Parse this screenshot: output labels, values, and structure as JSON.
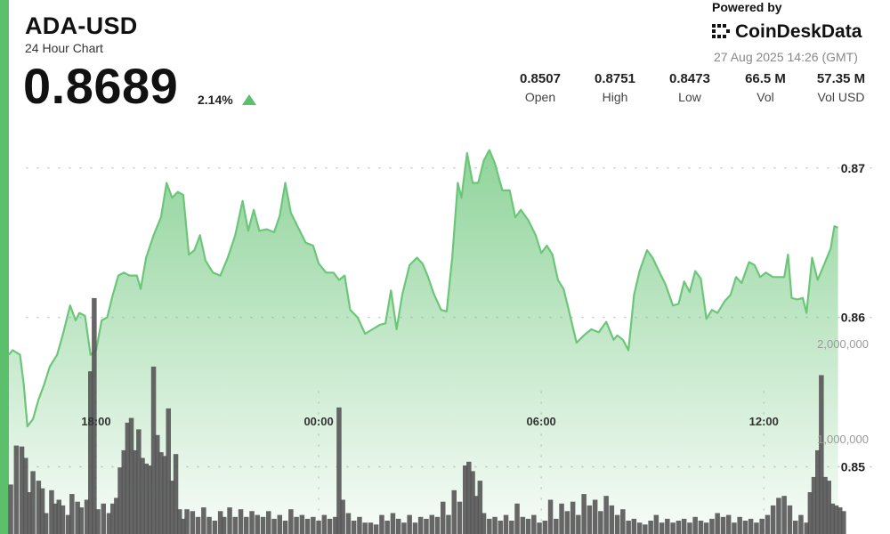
{
  "header": {
    "pair": "ADA-USD",
    "subtitle": "24 Hour Chart",
    "price": "0.8689",
    "change": "2.14%"
  },
  "branding": {
    "powered_by": "Powered by",
    "name": "CoinDeskData",
    "timestamp": "27 Aug 2025 14:26 (GMT)"
  },
  "stats": [
    {
      "value": "0.8507",
      "label": "Open"
    },
    {
      "value": "0.8751",
      "label": "High"
    },
    {
      "value": "0.8473",
      "label": "Low"
    },
    {
      "value": "66.5 M",
      "label": "Vol"
    },
    {
      "value": "57.35 M",
      "label": "Vol USD"
    }
  ],
  "colors": {
    "accent": "#5cbf6b",
    "line": "#6cc67a",
    "volume_bar": "#555555"
  },
  "chart_data": {
    "type": "line",
    "price_axis": {
      "ticks": [
        "0.87",
        "0.86",
        "0.85"
      ],
      "tick_values": [
        0.87,
        0.86,
        0.85
      ],
      "ylim": [
        0.8455,
        0.8735
      ],
      "grid": true
    },
    "volume_axis": {
      "ticks": [
        "2,000,000",
        "1,000,000"
      ],
      "tick_values": [
        2000000,
        1000000
      ],
      "ylim": [
        0,
        2900000
      ]
    },
    "time_axis": {
      "ticks": [
        "18:00",
        "00:00",
        "06:00",
        "12:00"
      ],
      "tick_hours": [
        18,
        24,
        30,
        36
      ],
      "range_hours": [
        15.65,
        39.4
      ]
    },
    "price_series": [
      [
        15.65,
        0.8575
      ],
      [
        15.75,
        0.8578
      ],
      [
        15.95,
        0.8575
      ],
      [
        16.05,
        0.8555
      ],
      [
        16.15,
        0.8527
      ],
      [
        16.3,
        0.8532
      ],
      [
        16.45,
        0.8545
      ],
      [
        16.6,
        0.8555
      ],
      [
        16.75,
        0.8567
      ],
      [
        16.95,
        0.8575
      ],
      [
        17.1,
        0.8588
      ],
      [
        17.3,
        0.8608
      ],
      [
        17.45,
        0.8598
      ],
      [
        17.55,
        0.8603
      ],
      [
        17.7,
        0.8601
      ],
      [
        17.85,
        0.8575
      ],
      [
        18.0,
        0.8578
      ],
      [
        18.15,
        0.8598
      ],
      [
        18.3,
        0.86
      ],
      [
        18.45,
        0.8615
      ],
      [
        18.6,
        0.8628
      ],
      [
        18.75,
        0.863
      ],
      [
        18.9,
        0.8628
      ],
      [
        19.1,
        0.8628
      ],
      [
        19.2,
        0.8619
      ],
      [
        19.35,
        0.864
      ],
      [
        19.55,
        0.8655
      ],
      [
        19.75,
        0.8667
      ],
      [
        19.9,
        0.869
      ],
      [
        20.05,
        0.868
      ],
      [
        20.2,
        0.8684
      ],
      [
        20.35,
        0.8682
      ],
      [
        20.5,
        0.8642
      ],
      [
        20.65,
        0.8645
      ],
      [
        20.8,
        0.8655
      ],
      [
        20.95,
        0.8638
      ],
      [
        21.15,
        0.863
      ],
      [
        21.35,
        0.8628
      ],
      [
        21.55,
        0.864
      ],
      [
        21.75,
        0.8655
      ],
      [
        21.95,
        0.8678
      ],
      [
        22.1,
        0.8658
      ],
      [
        22.25,
        0.8672
      ],
      [
        22.4,
        0.8658
      ],
      [
        22.6,
        0.8659
      ],
      [
        22.8,
        0.8657
      ],
      [
        22.95,
        0.8668
      ],
      [
        23.1,
        0.869
      ],
      [
        23.25,
        0.867
      ],
      [
        23.45,
        0.866
      ],
      [
        23.65,
        0.865
      ],
      [
        23.85,
        0.8648
      ],
      [
        24.0,
        0.8636
      ],
      [
        24.2,
        0.863
      ],
      [
        24.4,
        0.863
      ],
      [
        24.55,
        0.8625
      ],
      [
        24.7,
        0.8628
      ],
      [
        24.85,
        0.8605
      ],
      [
        25.05,
        0.86
      ],
      [
        25.25,
        0.8589
      ],
      [
        25.45,
        0.8592
      ],
      [
        25.65,
        0.8595
      ],
      [
        25.8,
        0.8596
      ],
      [
        25.95,
        0.8618
      ],
      [
        26.1,
        0.8592
      ],
      [
        26.25,
        0.8615
      ],
      [
        26.45,
        0.8635
      ],
      [
        26.65,
        0.864
      ],
      [
        26.8,
        0.8636
      ],
      [
        26.95,
        0.8627
      ],
      [
        27.1,
        0.8616
      ],
      [
        27.3,
        0.8605
      ],
      [
        27.45,
        0.8604
      ],
      [
        27.6,
        0.864
      ],
      [
        27.75,
        0.869
      ],
      [
        27.85,
        0.868
      ],
      [
        28.0,
        0.871
      ],
      [
        28.15,
        0.869
      ],
      [
        28.3,
        0.869
      ],
      [
        28.45,
        0.8705
      ],
      [
        28.6,
        0.8712
      ],
      [
        28.75,
        0.8703
      ],
      [
        28.95,
        0.8685
      ],
      [
        29.15,
        0.8685
      ],
      [
        29.3,
        0.8667
      ],
      [
        29.45,
        0.8672
      ],
      [
        29.65,
        0.8665
      ],
      [
        29.85,
        0.8655
      ],
      [
        30.0,
        0.8643
      ],
      [
        30.15,
        0.8648
      ],
      [
        30.3,
        0.8642
      ],
      [
        30.45,
        0.8625
      ],
      [
        30.6,
        0.8619
      ],
      [
        30.75,
        0.8604
      ],
      [
        30.95,
        0.8583
      ],
      [
        31.15,
        0.8588
      ],
      [
        31.35,
        0.8592
      ],
      [
        31.55,
        0.859
      ],
      [
        31.75,
        0.8597
      ],
      [
        31.95,
        0.8585
      ],
      [
        32.05,
        0.8588
      ],
      [
        32.2,
        0.8585
      ],
      [
        32.35,
        0.8578
      ],
      [
        32.5,
        0.8615
      ],
      [
        32.65,
        0.8631
      ],
      [
        32.85,
        0.8645
      ],
      [
        33.0,
        0.864
      ],
      [
        33.15,
        0.8632
      ],
      [
        33.35,
        0.8622
      ],
      [
        33.55,
        0.8608
      ],
      [
        33.7,
        0.8609
      ],
      [
        33.85,
        0.8624
      ],
      [
        34.0,
        0.8617
      ],
      [
        34.15,
        0.8631
      ],
      [
        34.3,
        0.8626
      ],
      [
        34.45,
        0.8599
      ],
      [
        34.6,
        0.8605
      ],
      [
        34.75,
        0.8603
      ],
      [
        34.95,
        0.8611
      ],
      [
        35.1,
        0.8615
      ],
      [
        35.25,
        0.8627
      ],
      [
        35.4,
        0.8623
      ],
      [
        35.6,
        0.8637
      ],
      [
        35.75,
        0.8635
      ],
      [
        35.9,
        0.8627
      ],
      [
        36.05,
        0.863
      ],
      [
        36.25,
        0.8627
      ],
      [
        36.4,
        0.8627
      ],
      [
        36.55,
        0.8627
      ],
      [
        36.65,
        0.8642
      ],
      [
        36.75,
        0.8613
      ],
      [
        36.9,
        0.8612
      ],
      [
        37.05,
        0.8613
      ],
      [
        37.15,
        0.8603
      ],
      [
        37.3,
        0.864
      ],
      [
        37.45,
        0.8625
      ],
      [
        37.65,
        0.8637
      ],
      [
        37.8,
        0.8646
      ],
      [
        37.9,
        0.8661
      ],
      [
        38.0,
        0.866
      ]
    ],
    "volume_series": [
      [
        15.7,
        520000
      ],
      [
        15.85,
        930000
      ],
      [
        16.0,
        920000
      ],
      [
        16.1,
        800000
      ],
      [
        16.2,
        440000
      ],
      [
        16.3,
        660000
      ],
      [
        16.45,
        560000
      ],
      [
        16.55,
        480000
      ],
      [
        16.65,
        220000
      ],
      [
        16.8,
        460000
      ],
      [
        16.9,
        320000
      ],
      [
        17.0,
        360000
      ],
      [
        17.1,
        300000
      ],
      [
        17.25,
        200000
      ],
      [
        17.35,
        420000
      ],
      [
        17.5,
        340000
      ],
      [
        17.6,
        280000
      ],
      [
        17.75,
        360000
      ],
      [
        17.85,
        1710000
      ],
      [
        17.95,
        2480000
      ],
      [
        18.05,
        260000
      ],
      [
        18.2,
        320000
      ],
      [
        18.35,
        220000
      ],
      [
        18.45,
        320000
      ],
      [
        18.55,
        380000
      ],
      [
        18.65,
        700000
      ],
      [
        18.75,
        880000
      ],
      [
        18.85,
        1170000
      ],
      [
        18.95,
        1220000
      ],
      [
        19.05,
        880000
      ],
      [
        19.15,
        1100000
      ],
      [
        19.25,
        800000
      ],
      [
        19.35,
        740000
      ],
      [
        19.45,
        720000
      ],
      [
        19.55,
        1760000
      ],
      [
        19.65,
        1040000
      ],
      [
        19.75,
        860000
      ],
      [
        19.85,
        820000
      ],
      [
        19.95,
        1320000
      ],
      [
        20.05,
        560000
      ],
      [
        20.15,
        840000
      ],
      [
        20.25,
        260000
      ],
      [
        20.35,
        160000
      ],
      [
        20.45,
        260000
      ],
      [
        20.6,
        240000
      ],
      [
        20.75,
        180000
      ],
      [
        20.9,
        280000
      ],
      [
        21.05,
        180000
      ],
      [
        21.2,
        140000
      ],
      [
        21.35,
        240000
      ],
      [
        21.45,
        180000
      ],
      [
        21.6,
        280000
      ],
      [
        21.75,
        180000
      ],
      [
        21.9,
        260000
      ],
      [
        22.05,
        180000
      ],
      [
        22.2,
        240000
      ],
      [
        22.35,
        200000
      ],
      [
        22.5,
        180000
      ],
      [
        22.65,
        240000
      ],
      [
        22.8,
        160000
      ],
      [
        22.95,
        200000
      ],
      [
        23.1,
        140000
      ],
      [
        23.25,
        260000
      ],
      [
        23.4,
        180000
      ],
      [
        23.55,
        200000
      ],
      [
        23.7,
        160000
      ],
      [
        23.85,
        180000
      ],
      [
        24.0,
        140000
      ],
      [
        24.15,
        200000
      ],
      [
        24.3,
        160000
      ],
      [
        24.45,
        180000
      ],
      [
        24.55,
        1330000
      ],
      [
        24.65,
        360000
      ],
      [
        24.8,
        220000
      ],
      [
        24.95,
        140000
      ],
      [
        25.1,
        180000
      ],
      [
        25.25,
        120000
      ],
      [
        25.4,
        120000
      ],
      [
        25.55,
        100000
      ],
      [
        25.7,
        200000
      ],
      [
        25.85,
        140000
      ],
      [
        26.0,
        220000
      ],
      [
        26.15,
        160000
      ],
      [
        26.3,
        120000
      ],
      [
        26.45,
        200000
      ],
      [
        26.6,
        120000
      ],
      [
        26.75,
        180000
      ],
      [
        26.9,
        160000
      ],
      [
        27.05,
        200000
      ],
      [
        27.2,
        180000
      ],
      [
        27.35,
        340000
      ],
      [
        27.5,
        200000
      ],
      [
        27.65,
        460000
      ],
      [
        27.8,
        340000
      ],
      [
        27.95,
        720000
      ],
      [
        28.05,
        760000
      ],
      [
        28.15,
        660000
      ],
      [
        28.25,
        400000
      ],
      [
        28.35,
        560000
      ],
      [
        28.45,
        220000
      ],
      [
        28.6,
        160000
      ],
      [
        28.75,
        180000
      ],
      [
        28.9,
        140000
      ],
      [
        29.05,
        200000
      ],
      [
        29.2,
        140000
      ],
      [
        29.35,
        320000
      ],
      [
        29.5,
        180000
      ],
      [
        29.65,
        160000
      ],
      [
        29.8,
        200000
      ],
      [
        29.95,
        120000
      ],
      [
        30.1,
        140000
      ],
      [
        30.25,
        360000
      ],
      [
        30.4,
        160000
      ],
      [
        30.55,
        320000
      ],
      [
        30.7,
        240000
      ],
      [
        30.85,
        340000
      ],
      [
        31.0,
        200000
      ],
      [
        31.15,
        420000
      ],
      [
        31.3,
        300000
      ],
      [
        31.45,
        360000
      ],
      [
        31.6,
        240000
      ],
      [
        31.75,
        400000
      ],
      [
        31.9,
        300000
      ],
      [
        32.05,
        200000
      ],
      [
        32.2,
        260000
      ],
      [
        32.35,
        140000
      ],
      [
        32.5,
        160000
      ],
      [
        32.65,
        120000
      ],
      [
        32.8,
        100000
      ],
      [
        32.95,
        140000
      ],
      [
        33.1,
        200000
      ],
      [
        33.25,
        120000
      ],
      [
        33.4,
        160000
      ],
      [
        33.55,
        120000
      ],
      [
        33.7,
        140000
      ],
      [
        33.85,
        160000
      ],
      [
        34.0,
        120000
      ],
      [
        34.15,
        180000
      ],
      [
        34.3,
        140000
      ],
      [
        34.45,
        120000
      ],
      [
        34.6,
        160000
      ],
      [
        34.75,
        220000
      ],
      [
        34.9,
        180000
      ],
      [
        35.05,
        200000
      ],
      [
        35.2,
        120000
      ],
      [
        35.35,
        180000
      ],
      [
        35.5,
        140000
      ],
      [
        35.65,
        160000
      ],
      [
        35.8,
        120000
      ],
      [
        35.95,
        160000
      ],
      [
        36.1,
        200000
      ],
      [
        36.25,
        300000
      ],
      [
        36.4,
        380000
      ],
      [
        36.55,
        400000
      ],
      [
        36.7,
        300000
      ],
      [
        36.85,
        140000
      ],
      [
        37.0,
        200000
      ],
      [
        37.15,
        120000
      ],
      [
        37.25,
        440000
      ],
      [
        37.35,
        600000
      ],
      [
        37.45,
        880000
      ],
      [
        37.55,
        1670000
      ],
      [
        37.65,
        600000
      ],
      [
        37.75,
        560000
      ],
      [
        37.85,
        320000
      ],
      [
        37.95,
        300000
      ],
      [
        38.05,
        280000
      ],
      [
        38.15,
        240000
      ]
    ]
  }
}
